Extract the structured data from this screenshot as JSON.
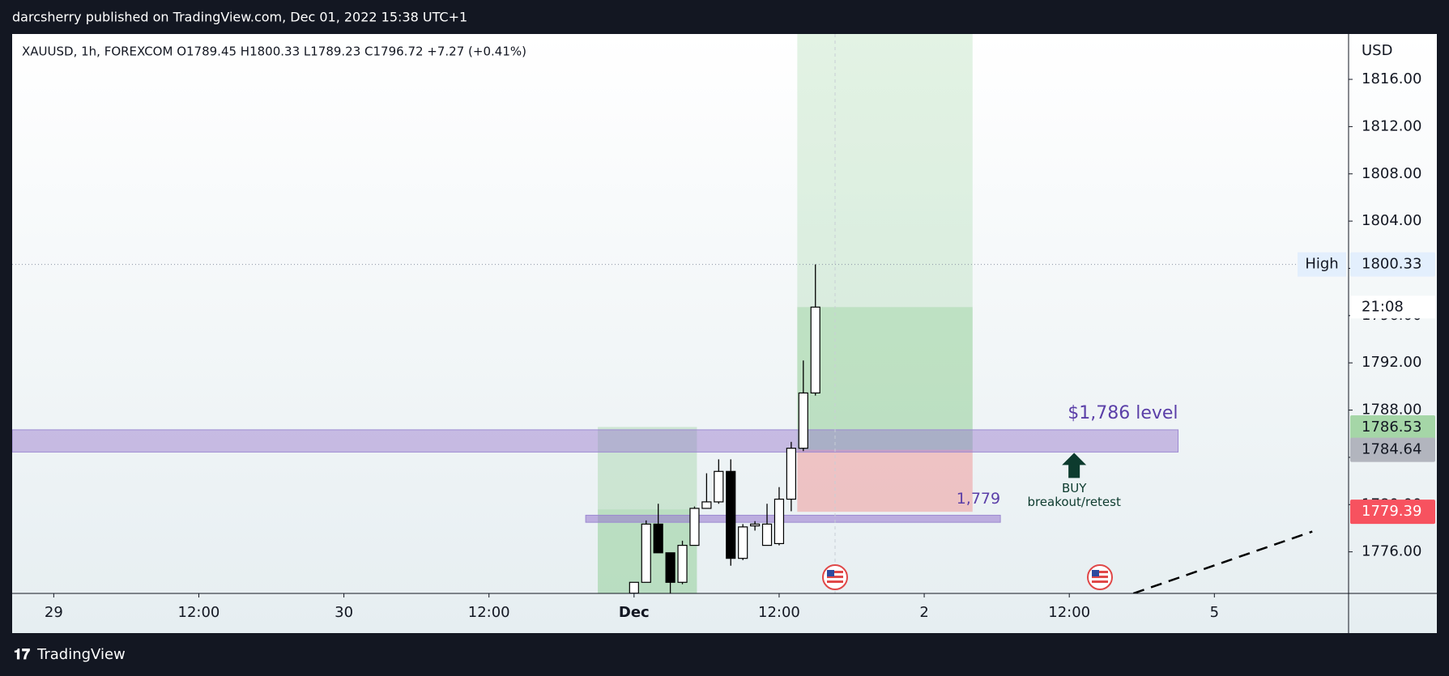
{
  "header": {
    "published": "darcsherry published on TradingView.com, Dec 01, 2022 15:38 UTC+1",
    "brand": "TradingView"
  },
  "chart_data": {
    "type": "candlestick",
    "title": "XAUUSD, 1h, FOREXCOM  O1789.45  H1800.33  L1789.23  C1796.72  +7.27 (+0.41%)",
    "y_unit": "USD",
    "x": [
      48,
      49,
      50,
      51,
      52,
      53,
      54,
      55,
      56,
      57,
      58,
      59,
      60,
      61,
      62,
      63
    ],
    "open": [
      1772.5,
      1773.42,
      1778.35,
      1775.92,
      1773.42,
      1776.55,
      1779.68,
      1780.23,
      1782.81,
      1775.45,
      1778.2,
      1776.55,
      1776.7,
      1780.46,
      1784.77,
      1789.45
    ],
    "high": [
      1773.42,
      1778.66,
      1780.07,
      1775.92,
      1776.94,
      1779.84,
      1782.65,
      1783.83,
      1783.83,
      1778.35,
      1778.6,
      1780.07,
      1781.48,
      1785.31,
      1792.2,
      1800.33
    ],
    "low": [
      1772.5,
      1773.42,
      1775.92,
      1772.5,
      1773.26,
      1776.55,
      1779.68,
      1780.07,
      1774.83,
      1775.3,
      1777.8,
      1776.55,
      1776.55,
      1779.44,
      1784.53,
      1789.23
    ],
    "close": [
      1773.42,
      1778.35,
      1775.92,
      1773.42,
      1776.55,
      1779.68,
      1780.23,
      1782.81,
      1775.45,
      1778.11,
      1778.35,
      1778.35,
      1780.46,
      1784.77,
      1789.45,
      1796.72
    ],
    "up_color": "#ffffff",
    "down_color": "#000000",
    "xlim": [
      -3.44,
      107.1
    ],
    "xticks": [
      {
        "value": 0,
        "label": "29"
      },
      {
        "value": 12,
        "label": "12:00"
      },
      {
        "value": 24,
        "label": "30"
      },
      {
        "value": 36,
        "label": "12:00"
      },
      {
        "value": 48,
        "label": "Dec",
        "bold": true
      },
      {
        "value": 60,
        "label": "12:00"
      },
      {
        "value": 72,
        "label": "2"
      },
      {
        "value": 84,
        "label": "12:00"
      },
      {
        "value": 96,
        "label": "5"
      }
    ],
    "ylim": [
      1772.48,
      1819.84
    ],
    "yticks": [
      {
        "value": 1776,
        "label": "1776.00"
      },
      {
        "value": 1780,
        "label": "1780.00"
      },
      {
        "value": 1784,
        "label": "1784.00"
      },
      {
        "value": 1788,
        "label": "1788.00"
      },
      {
        "value": 1792,
        "label": "1792.00"
      },
      {
        "value": 1796,
        "label": "1796.00"
      },
      {
        "value": 1800,
        "label": "1800.00"
      },
      {
        "value": 1804,
        "label": "1804.00"
      },
      {
        "value": 1808,
        "label": "1808.00"
      },
      {
        "value": 1812,
        "label": "1812.00"
      },
      {
        "value": 1816,
        "label": "1816.00"
      }
    ],
    "high_label": "High",
    "countdown": "21:08",
    "price_tags": [
      {
        "value": 1800.33,
        "color": "#e3effd",
        "text_color": "#131722"
      },
      {
        "value": 1786.53,
        "color": "#a5d6a7",
        "text_color": "#131722"
      },
      {
        "value": 1784.64,
        "color": "#b2b5be",
        "text_color": "#131722"
      },
      {
        "value": 1779.39,
        "color": "#f7525f",
        "text_color": "#ffffff"
      }
    ],
    "boxes": [
      {
        "x": [
          45,
          53.2
        ],
        "y": [
          1779.6,
          1786.57
        ],
        "color": "rgba(129,199,132,0.3)"
      },
      {
        "x": [
          45,
          53.2
        ],
        "y": [
          1772.48,
          1779.6
        ],
        "color": "rgba(129,199,132,0.45)"
      },
      {
        "x": [
          61.5,
          76
        ],
        "y": [
          1784.64,
          1819.84
        ],
        "color": "rgba(129,199,132,0.22)"
      },
      {
        "x": [
          61.5,
          76
        ],
        "y": [
          1784.64,
          1796.72
        ],
        "color": "rgba(129,199,132,0.3)"
      },
      {
        "x": [
          61.5,
          76
        ],
        "y": [
          1779.39,
          1784.64
        ],
        "color": "rgba(239,154,154,0.55)"
      }
    ],
    "zones": [
      {
        "label": "$1,786 level",
        "x": [
          -3.44,
          93
        ],
        "y": [
          1784.45,
          1786.33
        ],
        "color": "rgba(149,117,205,0.45)"
      },
      {
        "label": "1,779",
        "x": [
          44,
          78.3
        ],
        "y": [
          1778.5,
          1779.1
        ],
        "color": "rgba(149,117,205,0.55)"
      }
    ],
    "buy": {
      "text": "BUY",
      "subtext": "breakout/retest",
      "x": 84.4,
      "y": 1784.38,
      "color": "#0d3b2e"
    },
    "trend_line": {
      "x": [
        89.3,
        104.1
      ],
      "y": [
        1772.48,
        1777.72
      ]
    }
  }
}
